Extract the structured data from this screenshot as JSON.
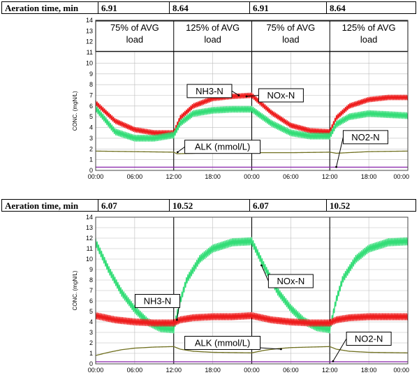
{
  "chart_data": [
    {
      "type": "line",
      "aeration_label": "Aeration time, min",
      "aeration_values": [
        "6.91",
        "8.64",
        "6.91",
        "8.64"
      ],
      "load_labels": [
        [
          "75% of AVG",
          "load"
        ],
        [
          "125% of AVG",
          "load"
        ],
        [
          "75% of AVG",
          "load"
        ],
        [
          "125% of AVG",
          "load"
        ]
      ],
      "ylabel": "CONC. (mgN/L)",
      "ylim": [
        0,
        14
      ],
      "yticks": [
        0,
        1,
        2,
        3,
        4,
        5,
        6,
        7,
        8,
        9,
        10,
        11,
        12,
        13,
        14
      ],
      "x_tick_labels": [
        "00:00",
        "06:00",
        "12:00",
        "18:00",
        "00:00",
        "06:00",
        "12:00",
        "18:00",
        "00:00"
      ],
      "xlim_hours": [
        0,
        48
      ],
      "grid": true,
      "colors": {
        "NH3-N": "#33dd77",
        "NOx-N": "#ee1c1c",
        "ALK": "#707020",
        "NO2-N": "#8822aa"
      },
      "series": [
        {
          "name": "NOx-N",
          "color": "#ee1c1c",
          "oscillation": 0.22,
          "points": [
            [
              0,
              6.3
            ],
            [
              3,
              4.6
            ],
            [
              6,
              3.8
            ],
            [
              9,
              3.5
            ],
            [
              12,
              3.5
            ],
            [
              13,
              4.9
            ],
            [
              15,
              6.0
            ],
            [
              18,
              6.7
            ],
            [
              21,
              6.9
            ],
            [
              24,
              7.0
            ],
            [
              27,
              5.4
            ],
            [
              30,
              4.2
            ],
            [
              33,
              3.7
            ],
            [
              36,
              3.6
            ],
            [
              37,
              4.9
            ],
            [
              39,
              6.0
            ],
            [
              42,
              6.6
            ],
            [
              45,
              6.8
            ],
            [
              48,
              6.8
            ]
          ]
        },
        {
          "name": "NH3-N",
          "color": "#33dd77",
          "oscillation": 0.28,
          "points": [
            [
              0,
              5.8
            ],
            [
              3,
              3.6
            ],
            [
              6,
              3.0
            ],
            [
              9,
              3.0
            ],
            [
              12,
              3.3
            ],
            [
              13,
              4.4
            ],
            [
              15,
              5.3
            ],
            [
              18,
              5.6
            ],
            [
              21,
              5.7
            ],
            [
              24,
              5.7
            ],
            [
              27,
              4.4
            ],
            [
              30,
              3.5
            ],
            [
              33,
              3.2
            ],
            [
              36,
              3.2
            ],
            [
              37,
              4.3
            ],
            [
              39,
              5.0
            ],
            [
              42,
              5.3
            ],
            [
              45,
              5.2
            ],
            [
              48,
              5.1
            ]
          ]
        },
        {
          "name": "ALK (mmol/L)",
          "color": "#707020",
          "points": [
            [
              0,
              1.8
            ],
            [
              6,
              1.75
            ],
            [
              12,
              1.7
            ],
            [
              12.5,
              1.55
            ],
            [
              18,
              1.65
            ],
            [
              24,
              1.65
            ],
            [
              30,
              1.65
            ],
            [
              36,
              1.7
            ],
            [
              37,
              1.6
            ],
            [
              42,
              1.75
            ],
            [
              48,
              1.8
            ]
          ]
        },
        {
          "name": "NO2-N",
          "color": "#8822aa",
          "points": [
            [
              0,
              0.3
            ],
            [
              48,
              0.3
            ]
          ]
        }
      ],
      "annotations": [
        {
          "text": "NH3-N",
          "at": [
            17.5,
            7.4
          ]
        },
        {
          "text": "NOx-N",
          "at": [
            28.5,
            7.0
          ]
        },
        {
          "text": "ALK (mmol/L)",
          "at": [
            19.5,
            2.2
          ]
        },
        {
          "text": "NO2-N",
          "at": [
            41.5,
            3.1
          ]
        }
      ]
    },
    {
      "type": "line",
      "aeration_label": "Aeration time, min",
      "aeration_values": [
        "6.07",
        "10.52",
        "6.07",
        "10.52"
      ],
      "ylabel": "CONC. (mgN/L)",
      "ylim": [
        0,
        14
      ],
      "yticks": [
        0,
        1,
        2,
        3,
        4,
        5,
        6,
        7,
        8,
        9,
        10,
        11,
        12,
        13,
        14
      ],
      "x_tick_labels": [
        "00:00",
        "06:00",
        "12:00",
        "18:00",
        "00:00",
        "06:00",
        "12:00",
        "18:00",
        "00:00"
      ],
      "xlim_hours": [
        0,
        48
      ],
      "grid": true,
      "colors": {
        "NH3-N": "#ee1c1c",
        "NOx-N": "#33dd77",
        "ALK": "#707020",
        "NO2-N": "#8822aa"
      },
      "series": [
        {
          "name": "NOx-N",
          "color": "#33dd77",
          "oscillation": 0.35,
          "points": [
            [
              0,
              11.6
            ],
            [
              2,
              9.0
            ],
            [
              4,
              6.8
            ],
            [
              6,
              5.2
            ],
            [
              8,
              4.0
            ],
            [
              10,
              3.4
            ],
            [
              12,
              3.3
            ],
            [
              13,
              6.0
            ],
            [
              14,
              8.0
            ],
            [
              16,
              10.0
            ],
            [
              18,
              11.0
            ],
            [
              21,
              11.6
            ],
            [
              24,
              11.7
            ],
            [
              26,
              9.2
            ],
            [
              28,
              6.9
            ],
            [
              30,
              5.3
            ],
            [
              32,
              4.1
            ],
            [
              34,
              3.5
            ],
            [
              36,
              3.3
            ],
            [
              37,
              6.1
            ],
            [
              38,
              8.1
            ],
            [
              40,
              10.0
            ],
            [
              42,
              11.0
            ],
            [
              45,
              11.6
            ],
            [
              48,
              11.7
            ]
          ]
        },
        {
          "name": "NH3-N",
          "color": "#ee1c1c",
          "oscillation": 0.3,
          "points": [
            [
              0,
              4.6
            ],
            [
              3,
              4.2
            ],
            [
              6,
              4.0
            ],
            [
              9,
              3.9
            ],
            [
              12,
              3.9
            ],
            [
              13,
              4.2
            ],
            [
              15,
              4.4
            ],
            [
              18,
              4.5
            ],
            [
              21,
              4.5
            ],
            [
              24,
              4.6
            ],
            [
              27,
              4.2
            ],
            [
              30,
              4.0
            ],
            [
              33,
              3.9
            ],
            [
              36,
              3.9
            ],
            [
              37,
              4.2
            ],
            [
              39,
              4.4
            ],
            [
              42,
              4.5
            ],
            [
              45,
              4.5
            ],
            [
              48,
              4.5
            ]
          ]
        },
        {
          "name": "ALK (mmol/L)",
          "color": "#707020",
          "points": [
            [
              0,
              0.8
            ],
            [
              2,
              1.1
            ],
            [
              4,
              1.35
            ],
            [
              6,
              1.5
            ],
            [
              9,
              1.6
            ],
            [
              12,
              1.65
            ],
            [
              13,
              1.4
            ],
            [
              15,
              1.2
            ],
            [
              18,
              1.1
            ],
            [
              24,
              1.05
            ],
            [
              26,
              1.3
            ],
            [
              28,
              1.45
            ],
            [
              30,
              1.55
            ],
            [
              33,
              1.6
            ],
            [
              36,
              1.65
            ],
            [
              37,
              1.4
            ],
            [
              39,
              1.2
            ],
            [
              42,
              1.1
            ],
            [
              48,
              1.05
            ]
          ]
        },
        {
          "name": "NO2-N",
          "color": "#8822aa",
          "points": [
            [
              0,
              0.2
            ],
            [
              48,
              0.2
            ]
          ]
        }
      ],
      "annotations": [
        {
          "text": "NH3-N",
          "at": [
            9.5,
            6.0
          ]
        },
        {
          "text": "NOx-N",
          "at": [
            30.0,
            7.9
          ]
        },
        {
          "text": "ALK (mmol/L)",
          "at": [
            19.5,
            2.0
          ]
        },
        {
          "text": "NO2-N",
          "at": [
            42.0,
            2.4
          ]
        }
      ]
    }
  ]
}
